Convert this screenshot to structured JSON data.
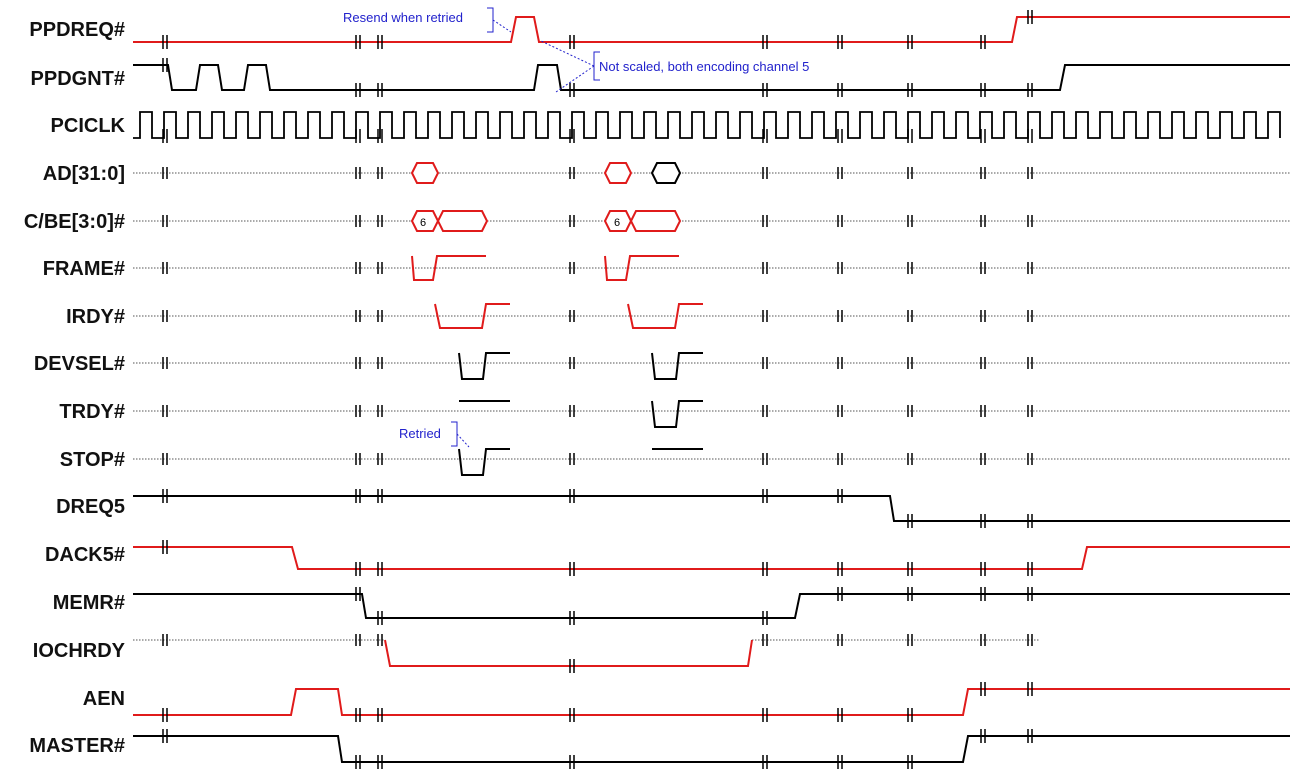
{
  "colors": {
    "active": "#e01b1b",
    "normal": "#000000",
    "note": "#2222cc",
    "idle": "#555555"
  },
  "signals": [
    {
      "id": "ppdreq",
      "label": "PPDREQ#"
    },
    {
      "id": "ppdgnt",
      "label": "PPDGNT#"
    },
    {
      "id": "pciclk",
      "label": "PCICLK"
    },
    {
      "id": "ad",
      "label": "AD[31:0]"
    },
    {
      "id": "cbe",
      "label": "C/BE[3:0]#"
    },
    {
      "id": "frame",
      "label": "FRAME#"
    },
    {
      "id": "irdy",
      "label": "IRDY#"
    },
    {
      "id": "devsel",
      "label": "DEVSEL#"
    },
    {
      "id": "trdy",
      "label": "TRDY#"
    },
    {
      "id": "stop",
      "label": "STOP#"
    },
    {
      "id": "dreq5",
      "label": "DREQ5"
    },
    {
      "id": "dack5",
      "label": "DACK5#"
    },
    {
      "id": "memr",
      "label": "MEMR#"
    },
    {
      "id": "iochrdy",
      "label": "IOCHRDY"
    },
    {
      "id": "aen",
      "label": "AEN"
    },
    {
      "id": "master",
      "label": "MASTER#"
    }
  ],
  "bus_values": {
    "cbe_command_1": "6",
    "cbe_command_2": "6"
  },
  "annotations": {
    "resend": "Resend when retried",
    "not_scaled": "Not scaled, both encoding channel 5",
    "retried": "Retried"
  }
}
